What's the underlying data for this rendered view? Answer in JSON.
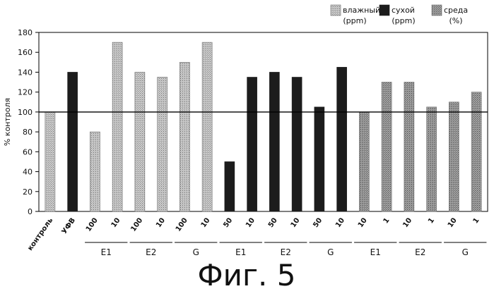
{
  "chart_data": {
    "type": "bar",
    "ylabel": "% контроля",
    "ylim": [
      0,
      180
    ],
    "yticks": [
      0,
      20,
      40,
      60,
      80,
      100,
      120,
      140,
      160,
      180
    ],
    "reference_line": 100,
    "grid": false,
    "legend_position": "top-right",
    "legend": [
      {
        "key": "wet",
        "name": "влажный",
        "unit": "(ppm)"
      },
      {
        "key": "dry",
        "name": "сухой",
        "unit": "(ppm)"
      },
      {
        "key": "medium",
        "name": "среда",
        "unit": "(%)"
      }
    ],
    "categories": [
      "контроль",
      "УФВ",
      "100",
      "10",
      "100",
      "10",
      "100",
      "10",
      "50",
      "10",
      "50",
      "10",
      "50",
      "10",
      "10",
      "1",
      "10",
      "1",
      "10",
      "1"
    ],
    "values": [
      100,
      140,
      80,
      170,
      140,
      135,
      150,
      170,
      50,
      135,
      140,
      135,
      105,
      145,
      100,
      130,
      130,
      105,
      110,
      120
    ],
    "bar_series": [
      "wet",
      "dry",
      "wet",
      "wet",
      "wet",
      "wet",
      "wet",
      "wet",
      "dry",
      "dry",
      "dry",
      "dry",
      "dry",
      "dry",
      "medium",
      "medium",
      "medium",
      "medium",
      "medium",
      "medium"
    ],
    "groups": [
      {
        "label": "E1",
        "start": 2,
        "end": 3
      },
      {
        "label": "E2",
        "start": 4,
        "end": 5
      },
      {
        "label": "G",
        "start": 6,
        "end": 7
      },
      {
        "label": "E1",
        "start": 8,
        "end": 9
      },
      {
        "label": "E2",
        "start": 10,
        "end": 11
      },
      {
        "label": "G",
        "start": 12,
        "end": 13
      },
      {
        "label": "E1",
        "start": 14,
        "end": 15
      },
      {
        "label": "E2",
        "start": 16,
        "end": 17
      },
      {
        "label": "G",
        "start": 18,
        "end": 19
      }
    ],
    "colors": {
      "wet": "#b5b5b5",
      "dry": "#1c1c1c",
      "medium": "#8a8a8a"
    }
  },
  "caption": "Фиг. 5"
}
